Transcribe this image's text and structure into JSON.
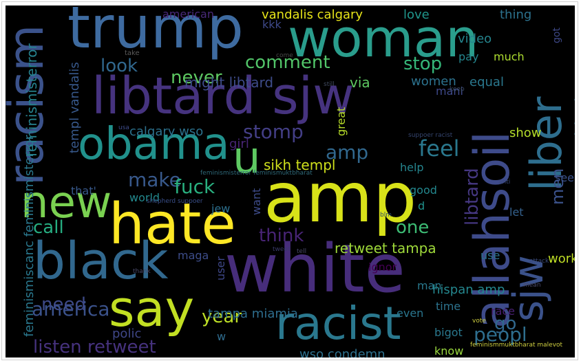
{
  "words": [
    {
      "text": "trump",
      "color": "#3e6ba0"
    },
    {
      "text": "woman",
      "color": "#2a9d8c"
    },
    {
      "text": "libtard sjw",
      "color": "#46337f"
    },
    {
      "text": "racism",
      "color": "#3b528b"
    },
    {
      "text": "allahsoil",
      "color": "#3e4b8a"
    },
    {
      "text": "liber",
      "color": "#2e6e8e"
    },
    {
      "text": "sjw",
      "color": "#3b528b"
    },
    {
      "text": "obama",
      "color": "#21918c"
    },
    {
      "text": "u",
      "color": "#5ec962"
    },
    {
      "text": "amp",
      "color": "#d8e219"
    },
    {
      "text": "new",
      "color": "#7ad151"
    },
    {
      "text": "hate",
      "color": "#fde725"
    },
    {
      "text": "black",
      "color": "#31688e"
    },
    {
      "text": "white",
      "color": "#472d7b"
    },
    {
      "text": "say",
      "color": "#c2df23"
    },
    {
      "text": "racist",
      "color": "#2a788e"
    },
    {
      "text": "america",
      "color": "#3b528b"
    },
    {
      "text": "listen retweet",
      "color": "#46327e"
    },
    {
      "text": "need",
      "color": "#3e4a89"
    },
    {
      "text": "year",
      "color": "#bddf26"
    },
    {
      "text": "peopl",
      "color": "#2e6e8e"
    },
    {
      "text": "stomp",
      "color": "#433e85"
    },
    {
      "text": "feel",
      "color": "#2a788e"
    },
    {
      "text": "look",
      "color": "#31688e"
    },
    {
      "text": "never",
      "color": "#5ec962"
    },
    {
      "text": "comment",
      "color": "#52c569"
    },
    {
      "text": "stop",
      "color": "#35b779"
    },
    {
      "text": "black amp",
      "color": "#2d708e"
    },
    {
      "text": "make",
      "color": "#38598c"
    },
    {
      "text": "fuck",
      "color": "#29af7f"
    },
    {
      "text": "call",
      "color": "#26ad81"
    },
    {
      "text": "think",
      "color": "#482475"
    },
    {
      "text": "one",
      "color": "#3dbc74"
    },
    {
      "text": "libtard",
      "color": "#453781"
    },
    {
      "text": "men",
      "color": "#3b528b"
    },
    {
      "text": "go",
      "color": "#31688e"
    },
    {
      "text": "amp",
      "color": "#31688e"
    },
    {
      "text": "sikh templ",
      "color": "#d0e11c"
    },
    {
      "text": "vandalis calgary",
      "color": "#e7e419"
    },
    {
      "text": "american",
      "color": "#482878"
    },
    {
      "text": "love",
      "color": "#1f968b"
    },
    {
      "text": "thing",
      "color": "#2c728e"
    },
    {
      "text": "kkk",
      "color": "#3e4989"
    },
    {
      "text": "video",
      "color": "#25858e"
    },
    {
      "text": "pay",
      "color": "#24868e"
    },
    {
      "text": "much",
      "color": "#addc30"
    },
    {
      "text": "got",
      "color": "#3e4989"
    },
    {
      "text": "might libtard",
      "color": "#3e4c8a"
    },
    {
      "text": "via",
      "color": "#5ec962"
    },
    {
      "text": "women",
      "color": "#2c728e"
    },
    {
      "text": "equal",
      "color": "#2a788e"
    },
    {
      "text": "mani",
      "color": "#3e4989"
    },
    {
      "text": "feminismisterror",
      "color": "#26828e"
    },
    {
      "text": "templ vandalis",
      "color": "#38598c"
    },
    {
      "text": "feminismiscanc feminismisterror",
      "color": "#2a788e"
    },
    {
      "text": "calgary wso",
      "color": "#2c728e"
    },
    {
      "text": "girl",
      "color": "#482575"
    },
    {
      "text": "great",
      "color": "#b8de29"
    },
    {
      "text": "show",
      "color": "#b5de2b"
    },
    {
      "text": "help",
      "color": "#25858e"
    },
    {
      "text": "see",
      "color": "#3b528b"
    },
    {
      "text": "that'",
      "color": "#38598c"
    },
    {
      "text": "world",
      "color": "#23898e"
    },
    {
      "text": "good",
      "color": "#23888e"
    },
    {
      "text": "d",
      "color": "#20928c"
    },
    {
      "text": "want",
      "color": "#3e4c8a"
    },
    {
      "text": "jew",
      "color": "#2d708e"
    },
    {
      "text": "let",
      "color": "#34618d"
    },
    {
      "text": "retweet tampa",
      "color": "#9fda3a"
    },
    {
      "text": "maga",
      "color": "#3d4d8a"
    },
    {
      "text": "ignor",
      "color": "#440154"
    },
    {
      "text": "use",
      "color": "#2d718e"
    },
    {
      "text": "work",
      "color": "#c0df25"
    },
    {
      "text": "man",
      "color": "#29798e"
    },
    {
      "text": "user",
      "color": "#3f4889"
    },
    {
      "text": "hispan amp",
      "color": "#24878e"
    },
    {
      "text": "tampa miamia",
      "color": "#2e6e8e"
    },
    {
      "text": "even",
      "color": "#2a768e"
    },
    {
      "text": "time",
      "color": "#2c738e"
    },
    {
      "text": "race",
      "color": "#482071"
    },
    {
      "text": "polic",
      "color": "#3f4788"
    },
    {
      "text": "w",
      "color": "#2f6c8e"
    },
    {
      "text": "bigot",
      "color": "#2a788e"
    },
    {
      "text": "wso condemn",
      "color": "#2d718e"
    },
    {
      "text": "know",
      "color": "#99d83d"
    },
    {
      "text": "take",
      "color": "#5b5b5b"
    },
    {
      "text": "come",
      "color": "#4a4a4a"
    },
    {
      "text": "still",
      "color": "#404a5f"
    },
    {
      "text": "keep",
      "color": "#3c4f6a"
    },
    {
      "text": "usa",
      "color": "#3e4c8a"
    },
    {
      "text": "suppoer racist",
      "color": "#35456f"
    },
    {
      "text": "feminismisterror feminismuktbharat",
      "color": "#2f6a7a"
    },
    {
      "text": "anti",
      "color": "#3a4a7a"
    },
    {
      "text": "shepherd suppoer",
      "color": "#3a4f8a"
    },
    {
      "text": "blm",
      "color": "#2f4a6a"
    },
    {
      "text": "tweet",
      "color": "#3a3a6a"
    },
    {
      "text": "tell",
      "color": "#4a4a6a"
    },
    {
      "text": "thank",
      "color": "#4a4a6a"
    },
    {
      "text": "attack",
      "color": "#3a4a7a"
    },
    {
      "text": "mean",
      "color": "#4a4a6a"
    },
    {
      "text": "vote",
      "color": "#d0d040"
    },
    {
      "text": "feminismmuktbharat malevot",
      "color": "#d0d040"
    }
  ]
}
